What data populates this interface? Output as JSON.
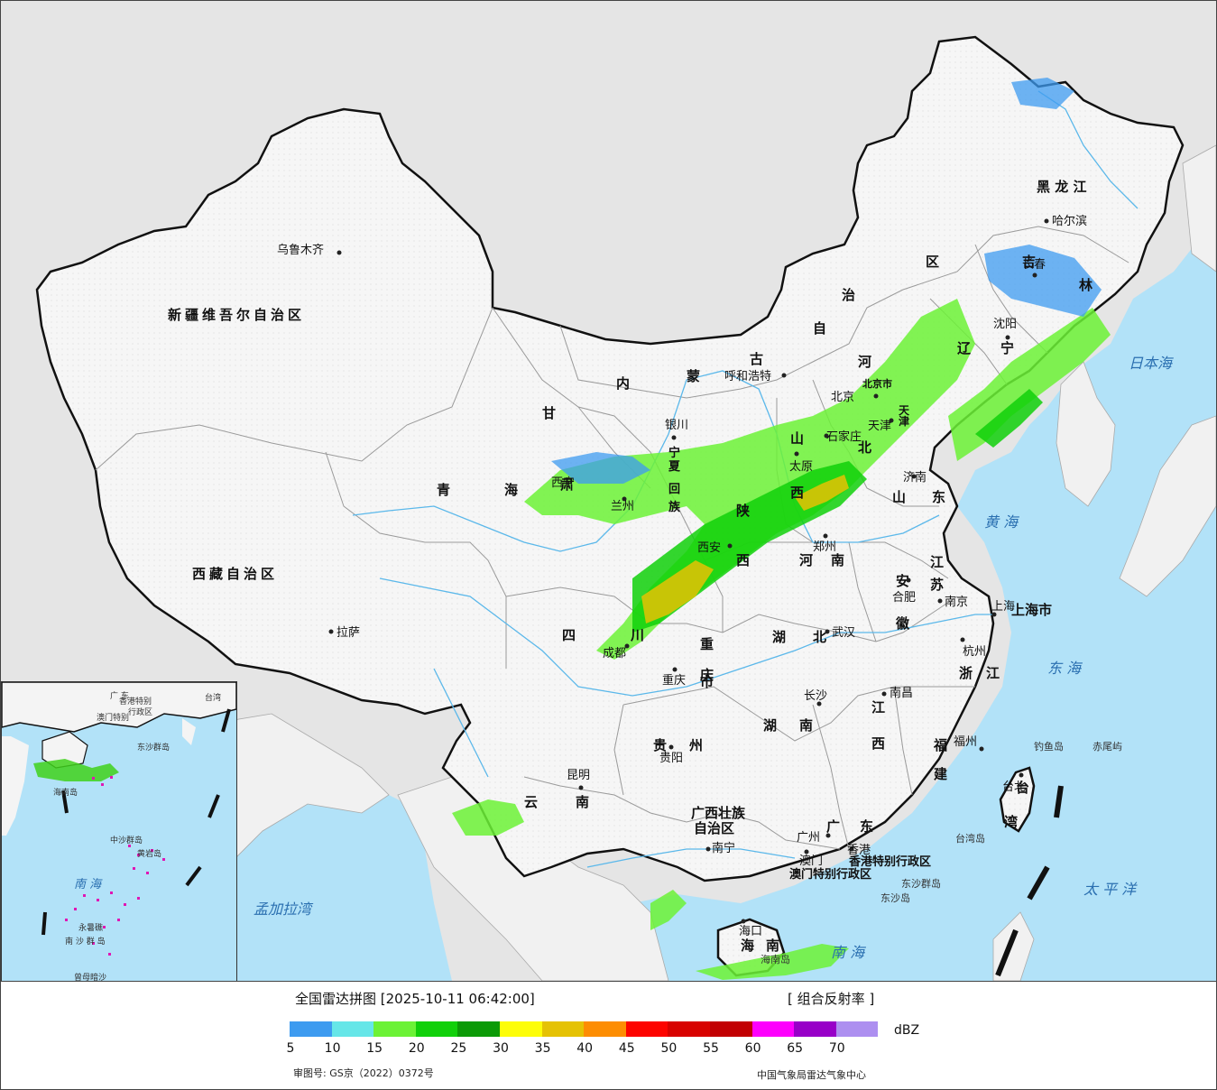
{
  "colors": {
    "land": "#f4f4f4",
    "sea": "#b2e2f8",
    "outside": "#e5e5e5",
    "border": "#111111",
    "province": "#9a9a9a",
    "river": "#5bb8ea"
  },
  "provinces": [
    {
      "name": "新疆维吾尔自治区"
    },
    {
      "name": "西藏自治区"
    },
    {
      "name": "青"
    },
    {
      "name": "海"
    },
    {
      "name": "甘"
    },
    {
      "name": "肃"
    },
    {
      "name": "内"
    },
    {
      "name": "蒙"
    },
    {
      "name": "古"
    },
    {
      "name": "自"
    },
    {
      "name": "治"
    },
    {
      "name": "区"
    },
    {
      "name": "黑 龙 江"
    },
    {
      "name": "吉"
    },
    {
      "name": "林"
    },
    {
      "name": "辽"
    },
    {
      "name": "宁"
    },
    {
      "name": "河"
    },
    {
      "name": "北"
    },
    {
      "name": "山"
    },
    {
      "name": "西"
    },
    {
      "name": "山"
    },
    {
      "name": "东"
    },
    {
      "name": "陕"
    },
    {
      "name": "西"
    },
    {
      "name": "河"
    },
    {
      "name": "南"
    },
    {
      "name": "宁"
    },
    {
      "name": "夏"
    },
    {
      "name": "回"
    },
    {
      "name": "族"
    },
    {
      "name": "四"
    },
    {
      "name": "川"
    },
    {
      "name": "重"
    },
    {
      "name": "庆"
    },
    {
      "name": "市"
    },
    {
      "name": "湖"
    },
    {
      "name": "北"
    },
    {
      "name": "湖"
    },
    {
      "name": "南"
    },
    {
      "name": "贵"
    },
    {
      "name": "州"
    },
    {
      "name": "云"
    },
    {
      "name": "南"
    },
    {
      "name": "广西壮族"
    },
    {
      "name": "自治区"
    },
    {
      "name": "广"
    },
    {
      "name": "东"
    },
    {
      "name": "江"
    },
    {
      "name": "西"
    },
    {
      "name": "福"
    },
    {
      "name": "建"
    },
    {
      "name": "浙"
    },
    {
      "name": "江"
    },
    {
      "name": "安"
    },
    {
      "name": "徽"
    },
    {
      "name": "江"
    },
    {
      "name": "苏"
    },
    {
      "name": "上海市"
    },
    {
      "name": "台"
    },
    {
      "name": "湾"
    },
    {
      "name": "海"
    },
    {
      "name": "南"
    },
    {
      "name": "北京市"
    },
    {
      "name": "天"
    },
    {
      "name": "津"
    },
    {
      "name": "香港特别行政区"
    },
    {
      "name": "澳门特别行政区"
    }
  ],
  "cities": [
    {
      "name": "乌鲁木齐"
    },
    {
      "name": "拉萨"
    },
    {
      "name": "西宁"
    },
    {
      "name": "兰州"
    },
    {
      "name": "银川"
    },
    {
      "name": "呼和浩特"
    },
    {
      "name": "北京"
    },
    {
      "name": "天津"
    },
    {
      "name": "石家庄"
    },
    {
      "name": "太原"
    },
    {
      "name": "济南"
    },
    {
      "name": "沈阳"
    },
    {
      "name": "长春"
    },
    {
      "name": "哈尔滨"
    },
    {
      "name": "西安"
    },
    {
      "name": "郑州"
    },
    {
      "name": "合肥"
    },
    {
      "name": "南京"
    },
    {
      "name": "上海"
    },
    {
      "name": "杭州"
    },
    {
      "name": "武汉"
    },
    {
      "name": "成都"
    },
    {
      "name": "重庆"
    },
    {
      "name": "长沙"
    },
    {
      "name": "南昌"
    },
    {
      "name": "福州"
    },
    {
      "name": "台北"
    },
    {
      "name": "贵阳"
    },
    {
      "name": "昆明"
    },
    {
      "name": "南宁"
    },
    {
      "name": "广州"
    },
    {
      "name": "澳门"
    },
    {
      "name": "香港"
    },
    {
      "name": "海口"
    }
  ],
  "seas": [
    {
      "name": "日本海"
    },
    {
      "name": "黄 海"
    },
    {
      "name": "东 海"
    },
    {
      "name": "太 平 洋"
    },
    {
      "name": "南 海"
    },
    {
      "name": "孟加拉湾"
    }
  ],
  "islands": [
    {
      "name": "钓鱼岛"
    },
    {
      "name": "赤尾屿"
    },
    {
      "name": "台湾岛"
    },
    {
      "name": "东沙群岛"
    },
    {
      "name": "东沙岛"
    },
    {
      "name": "海南岛"
    }
  ],
  "inset": {
    "labels": [
      {
        "name": "海南岛"
      },
      {
        "name": "东沙群岛"
      },
      {
        "name": "中沙群岛"
      },
      {
        "name": "黄岩岛"
      },
      {
        "name": "南 海"
      },
      {
        "name": "南 沙 群 岛"
      },
      {
        "name": "曾母暗沙"
      },
      {
        "name": "永暑礁"
      },
      {
        "name": "香港特别"
      },
      {
        "name": "行政区"
      },
      {
        "name": "澳门特别"
      },
      {
        "name": "广 东"
      },
      {
        "name": "台湾"
      }
    ]
  },
  "legend": {
    "title": "全国雷达拼图 [2025-10-11 06:42:00]",
    "product": "[ 组合反射率 ]",
    "unit": "dBZ",
    "ticks": [
      "5",
      "10",
      "15",
      "20",
      "25",
      "30",
      "35",
      "40",
      "45",
      "50",
      "55",
      "60",
      "65",
      "70"
    ],
    "colors": [
      "#3d9bf0",
      "#66e6e8",
      "#6cf236",
      "#11d00a",
      "#0b9a06",
      "#fdfd08",
      "#e5c204",
      "#fd8d02",
      "#fd0400",
      "#d80200",
      "#c20002",
      "#fd00fd",
      "#9800c8",
      "#ad8ff0"
    ],
    "review_no": "审图号: GS京（2022）0372号",
    "org": "中国气象局雷达气象中心"
  }
}
